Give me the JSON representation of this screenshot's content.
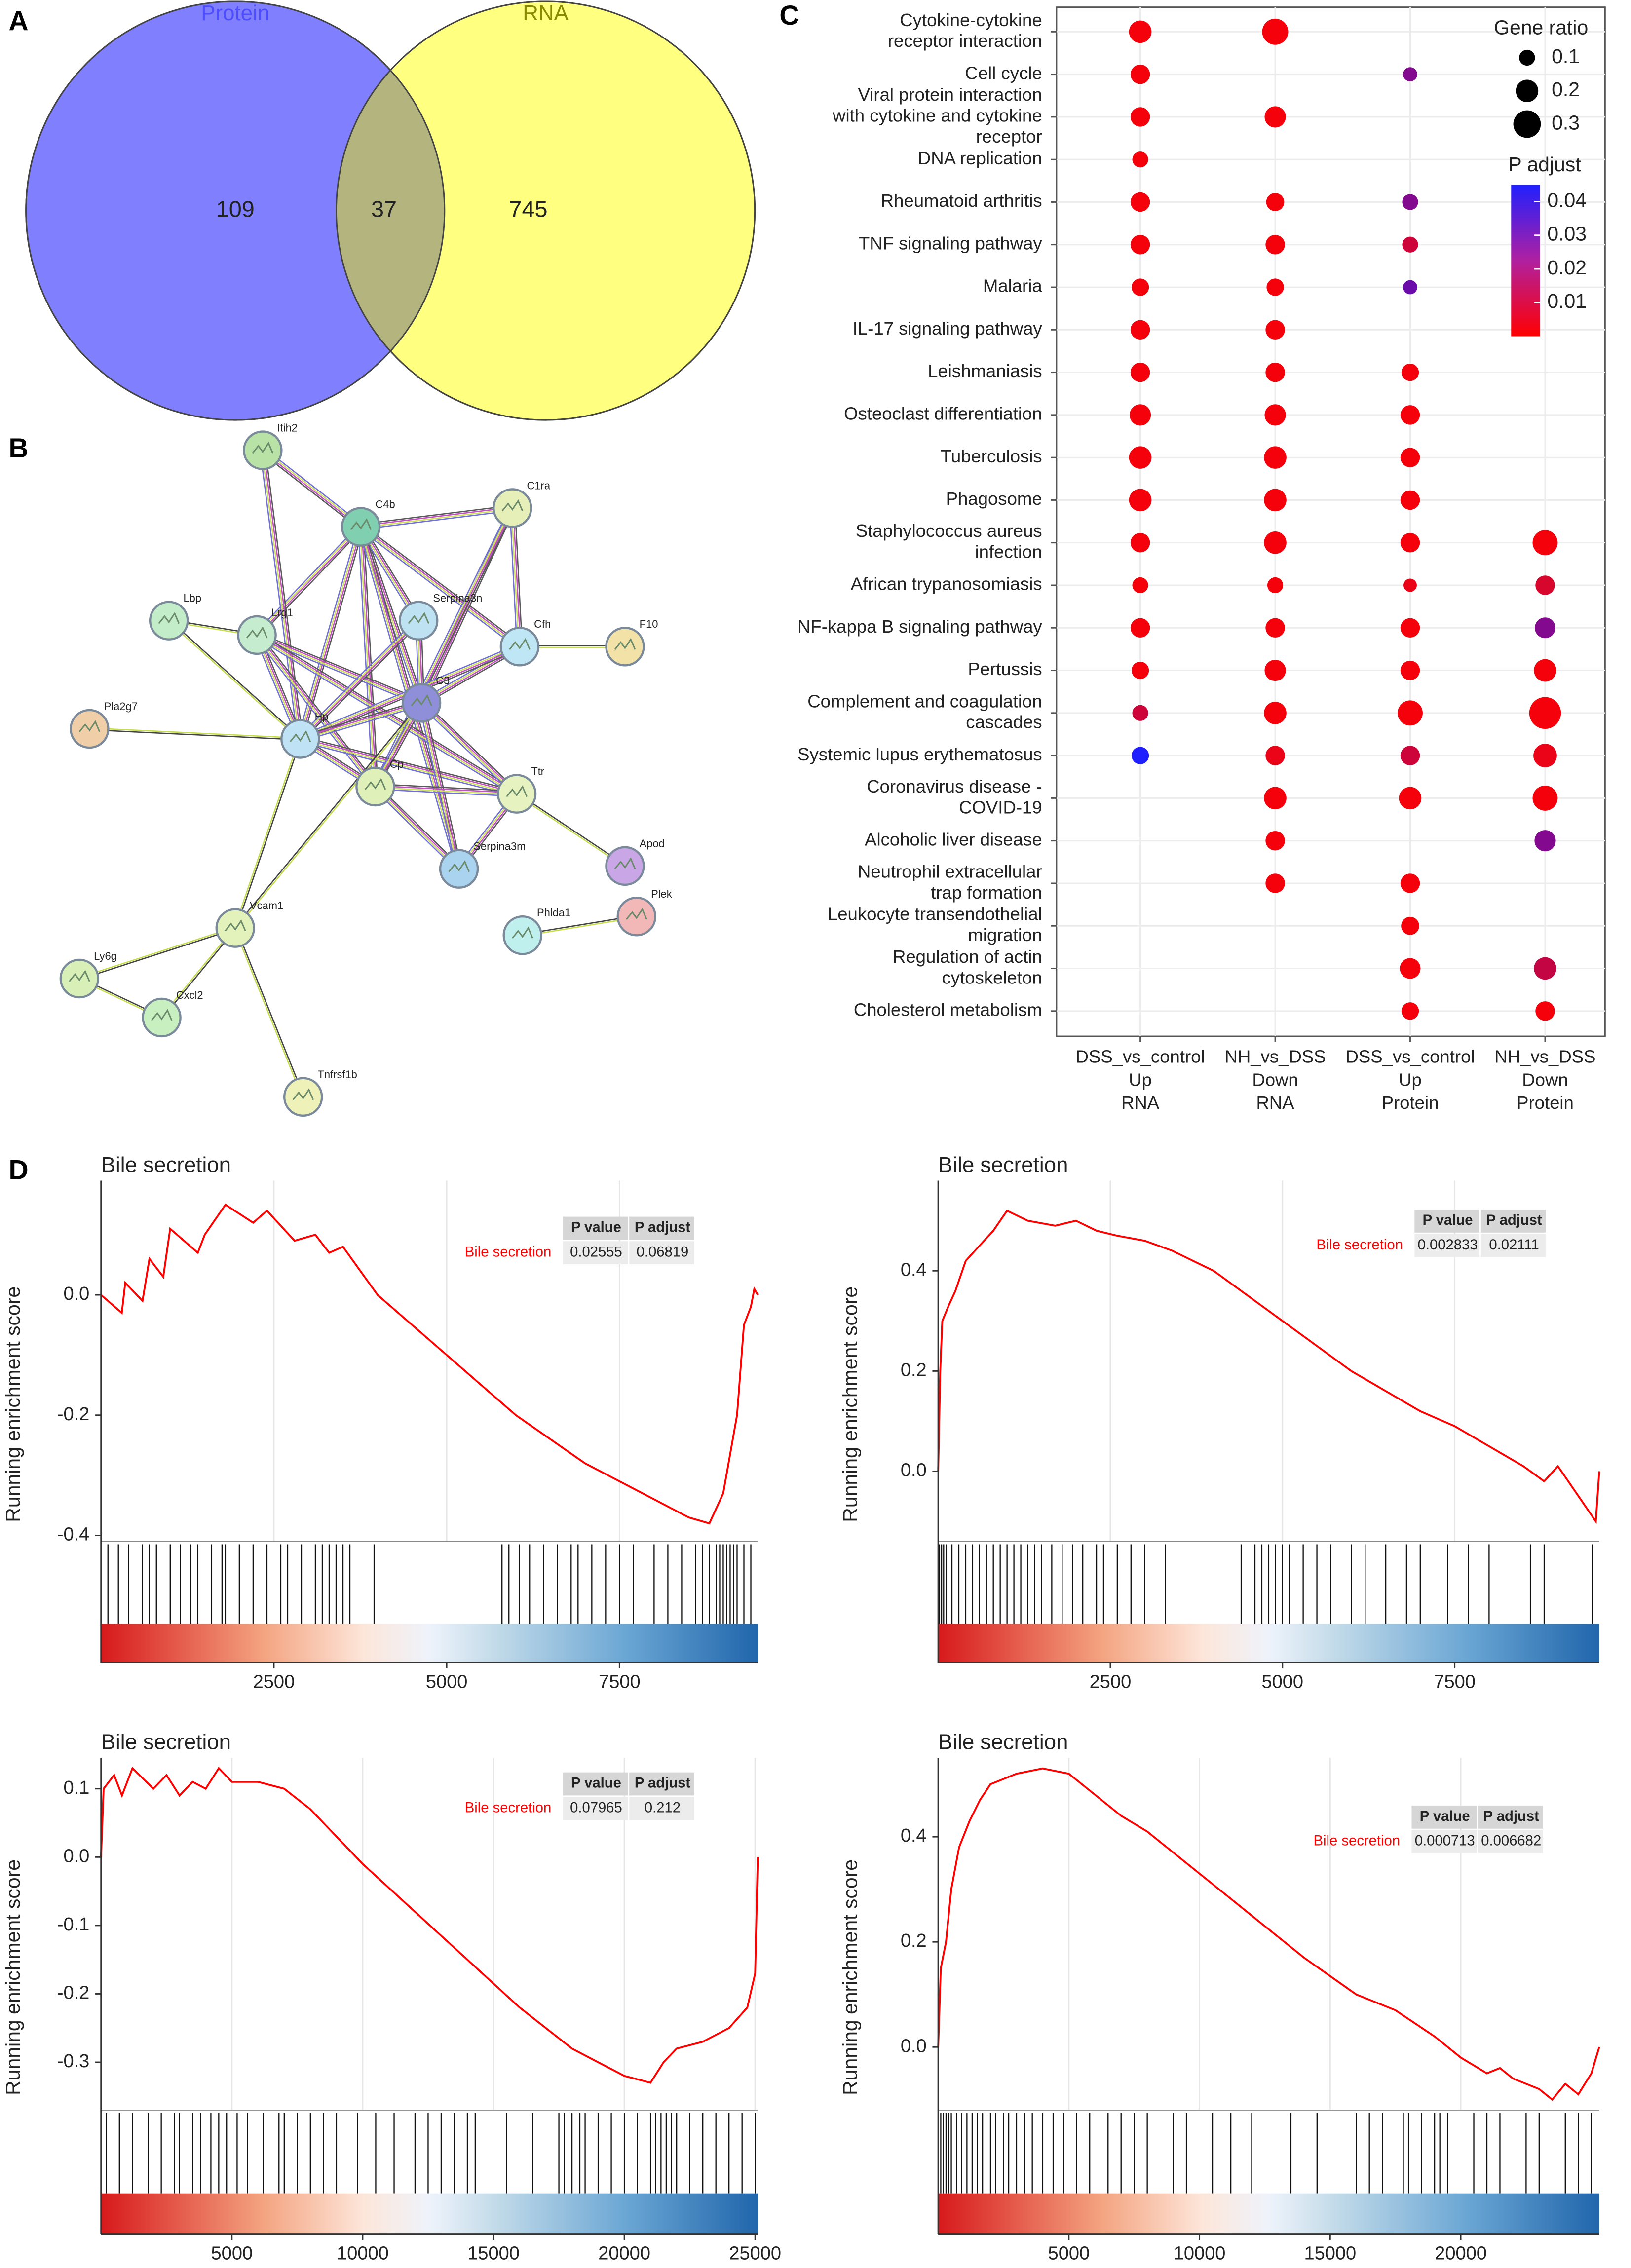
{
  "panels": [
    "A",
    "B",
    "C",
    "D"
  ],
  "chart_data": [
    {
      "type": "venn",
      "sets": [
        "Protein",
        "RNA"
      ],
      "values": [
        109,
        37,
        745
      ],
      "colors": [
        "#8080ff",
        "#ffff80"
      ],
      "overlap_color": "#b4b47e",
      "label_colors": [
        "#4d4dff",
        "#8a8a00"
      ]
    },
    {
      "type": "network",
      "nodes": [
        {
          "label": "Itih2",
          "color": "#b9e3a6"
        },
        {
          "label": "C4b",
          "color": "#7fcfb0"
        },
        {
          "label": "C1ra",
          "color": "#e6efb8"
        },
        {
          "label": "Lbp",
          "color": "#c3ecc9"
        },
        {
          "label": "Lrg1",
          "color": "#c6eccf"
        },
        {
          "label": "Serpina3n",
          "color": "#bfe2f3"
        },
        {
          "label": "Cfh",
          "color": "#bfe6f5"
        },
        {
          "label": "F10",
          "color": "#f2e2a8"
        },
        {
          "label": "Pla2g7",
          "color": "#f0cfa8"
        },
        {
          "label": "Hp",
          "color": "#bfe2f5"
        },
        {
          "label": "C3",
          "color": "#8f8fd9"
        },
        {
          "label": "Cp",
          "color": "#dff0b8"
        },
        {
          "label": "Ttr",
          "color": "#e6f2c0"
        },
        {
          "label": "Apod",
          "color": "#c9a6e6"
        },
        {
          "label": "Serpina3m",
          "color": "#a9d3ef"
        },
        {
          "label": "Vcam1",
          "color": "#e3f2ba"
        },
        {
          "label": "Phlda1",
          "color": "#bff0ee"
        },
        {
          "label": "Plek",
          "color": "#f2b8b8"
        },
        {
          "label": "Ly6g",
          "color": "#d8f0b8"
        },
        {
          "label": "Cxcl2",
          "color": "#c8efc0"
        },
        {
          "label": "Tnfrsf1b",
          "color": "#eef2b8"
        }
      ]
    },
    {
      "type": "dot",
      "categories": [
        [
          "Cytokine-cytokine",
          "receptor  interaction"
        ],
        [
          "Cell cycle"
        ],
        [
          "Viral protein interaction",
          "with cytokine and cytokine",
          "receptor"
        ],
        [
          "DNA replication"
        ],
        [
          "Rheumatoid arthritis"
        ],
        [
          "TNF signaling pathway"
        ],
        [
          "Malaria"
        ],
        [
          "IL-17 signaling pathway"
        ],
        [
          "Leishmaniasis"
        ],
        [
          "Osteoclast differentiation"
        ],
        [
          "Tuberculosis"
        ],
        [
          "Phagosome"
        ],
        [
          "Staphylococcus aureus",
          "infection"
        ],
        [
          "African trypanosomiasis"
        ],
        [
          "NF-kappa B signaling pathway"
        ],
        [
          "Pertussis"
        ],
        [
          "Complement and coagulation",
          "cascades"
        ],
        [
          "Systemic lupus erythematosus"
        ],
        [
          "Coronavirus disease -",
          "COVID-19"
        ],
        [
          "Alcoholic liver disease"
        ],
        [
          "Neutrophil extracellular",
          "trap formation"
        ],
        [
          "Leukocyte transendothelial",
          "migration"
        ],
        [
          "Regulation of actin",
          "cytoskeleton"
        ],
        [
          "Cholesterol metabolism"
        ]
      ],
      "x_categories": [
        [
          "DSS_vs_control",
          "Up",
          "RNA"
        ],
        [
          "NH_vs_DSS",
          "Down",
          "RNA"
        ],
        [
          "DSS_vs_control",
          "Up",
          "Protein"
        ],
        [
          "NH_vs_DSS",
          "Down",
          "Protein"
        ]
      ],
      "series": [
        {
          "values": [
            0.2,
            0.15,
            0.15,
            0.1,
            0.15,
            0.15,
            0.12,
            0.15,
            0.15,
            0.18,
            0.2,
            0.2,
            0.15,
            0.1,
            0.15,
            0.12,
            0.1,
            0.12,
            null,
            null,
            null,
            null,
            null,
            null
          ],
          "p_adjust": [
            0.002,
            0.002,
            0.002,
            0.002,
            0.002,
            0.002,
            0.002,
            0.002,
            0.002,
            0.002,
            0.002,
            0.002,
            0.002,
            0.002,
            0.002,
            0.002,
            0.01,
            0.045,
            null,
            null,
            null,
            null,
            null,
            null
          ]
        },
        {
          "values": [
            0.27,
            null,
            0.18,
            null,
            0.13,
            0.15,
            0.12,
            0.15,
            0.15,
            0.18,
            0.2,
            0.2,
            0.2,
            0.1,
            0.15,
            0.18,
            0.2,
            0.15,
            0.2,
            0.15,
            0.15,
            null,
            null,
            null
          ],
          "p_adjust": [
            0.002,
            null,
            0.002,
            null,
            0.002,
            0.002,
            0.002,
            0.002,
            0.002,
            0.002,
            0.002,
            0.002,
            0.002,
            0.002,
            0.002,
            0.002,
            0.002,
            0.004,
            0.002,
            0.002,
            0.002,
            null,
            null,
            null
          ]
        },
        {
          "values": [
            null,
            0.08,
            null,
            null,
            0.1,
            0.1,
            0.08,
            null,
            0.12,
            0.15,
            0.15,
            0.15,
            0.15,
            0.07,
            0.15,
            0.15,
            0.25,
            0.15,
            0.2,
            null,
            0.15,
            0.13,
            0.17,
            0.12
          ],
          "p_adjust": [
            null,
            0.025,
            null,
            null,
            0.025,
            0.01,
            0.03,
            null,
            0.002,
            0.002,
            0.002,
            0.002,
            0.002,
            0.004,
            0.002,
            0.002,
            0.002,
            0.01,
            0.002,
            null,
            0.002,
            0.002,
            0.002,
            0.002
          ]
        },
        {
          "values": [
            null,
            null,
            null,
            null,
            null,
            null,
            null,
            null,
            null,
            null,
            null,
            null,
            0.25,
            0.15,
            0.17,
            0.2,
            0.4,
            0.22,
            0.25,
            0.18,
            null,
            null,
            0.2,
            0.15
          ],
          "p_adjust": [
            null,
            null,
            null,
            null,
            null,
            null,
            null,
            null,
            null,
            null,
            null,
            null,
            0.002,
            0.008,
            0.025,
            0.002,
            0.002,
            0.004,
            0.002,
            0.025,
            null,
            null,
            0.012,
            0.002
          ]
        }
      ],
      "size_title": "Gene ratio",
      "size_ticks": [
        0.1,
        0.2,
        0.3
      ],
      "color_title": "P adjust",
      "colorlim": [
        0,
        0.045
      ],
      "color_ticks": [
        0.01,
        0.02,
        0.03,
        0.04
      ],
      "colors": [
        "#ff0000",
        "#2020ff"
      ]
    },
    {
      "type": "gsea",
      "title": "Bile secretion",
      "ylabel": "Running enrichment score",
      "color": "#ff0000",
      "grid": true,
      "x": [
        0,
        300,
        350,
        600,
        700,
        900,
        1000,
        1400,
        1500,
        1800,
        2200,
        2400,
        2800,
        3100,
        3300,
        3500,
        4000,
        5000,
        6000,
        7000,
        8000,
        8500,
        8800,
        9000,
        9200,
        9300,
        9400,
        9450,
        9500
      ],
      "values": [
        0.0,
        -0.03,
        0.02,
        -0.01,
        0.06,
        0.03,
        0.11,
        0.07,
        0.1,
        0.15,
        0.12,
        0.14,
        0.09,
        0.1,
        0.07,
        0.08,
        0.0,
        -0.1,
        -0.2,
        -0.28,
        -0.34,
        -0.37,
        -0.38,
        -0.33,
        -0.2,
        -0.05,
        -0.02,
        0.01,
        0.0
      ],
      "hits": [
        100,
        250,
        400,
        600,
        700,
        800,
        1000,
        1150,
        1300,
        1400,
        1600,
        1750,
        1800,
        2000,
        2200,
        2400,
        2600,
        2700,
        2900,
        3100,
        3200,
        3300,
        3400,
        3500,
        3600,
        3950,
        5800,
        5900,
        6050,
        6200,
        6400,
        6600,
        6800,
        6900,
        7100,
        7300,
        7500,
        7700,
        8000,
        8200,
        8400,
        8600,
        8700,
        8800,
        8900,
        8950,
        9000,
        9050,
        9100,
        9150,
        9200,
        9300,
        9400
      ],
      "xlim": [
        0,
        9500
      ],
      "ylim": [
        -0.41,
        0.19
      ],
      "xticks": [
        2500,
        5000,
        7500
      ],
      "yticks": [
        -0.4,
        -0.2,
        {
          "value": 0,
          "label": "0.0"
        }
      ],
      "table": {
        "header": [
          "P value",
          "P adjust"
        ],
        "row_label": "Bile secretion",
        "values": [
          0.02555,
          0.06819
        ]
      }
    },
    {
      "type": "gsea",
      "title": "Bile secretion",
      "ylabel": "Running enrichment score",
      "color": "#ff0000",
      "grid": true,
      "x": [
        0,
        30,
        60,
        150,
        250,
        400,
        600,
        800,
        1000,
        1300,
        1700,
        2000,
        2300,
        2600,
        3000,
        3400,
        4000,
        5000,
        6000,
        7000,
        7500,
        8000,
        8500,
        8800,
        9000,
        9500,
        9550,
        9600
      ],
      "values": [
        0.0,
        0.2,
        0.3,
        0.33,
        0.36,
        0.42,
        0.45,
        0.48,
        0.52,
        0.5,
        0.49,
        0.5,
        0.48,
        0.47,
        0.46,
        0.44,
        0.4,
        0.3,
        0.2,
        0.12,
        0.09,
        0.05,
        0.01,
        -0.02,
        0.01,
        -0.09,
        -0.1,
        0.0
      ],
      "hits": [
        20,
        50,
        80,
        120,
        200,
        300,
        400,
        500,
        600,
        700,
        800,
        900,
        1000,
        1100,
        1200,
        1300,
        1400,
        1500,
        1650,
        1800,
        1950,
        2100,
        2300,
        2400,
        2600,
        2800,
        3000,
        3300,
        4400,
        4600,
        4700,
        4800,
        4900,
        5000,
        5100,
        5300,
        5500,
        5700,
        6000,
        6200,
        6500,
        6800,
        7000,
        7400,
        7700,
        8000,
        8600,
        8800,
        9500
      ],
      "xlim": [
        0,
        9600
      ],
      "ylim": [
        -0.14,
        0.58
      ],
      "xticks": [
        2500,
        5000,
        7500
      ],
      "yticks": [
        {
          "value": 0,
          "label": "0.0"
        },
        0.2,
        0.4
      ],
      "table": {
        "header": [
          "P value",
          "P adjust"
        ],
        "row_label": "Bile secretion",
        "values": [
          0.002833,
          0.02111
        ]
      }
    },
    {
      "type": "gsea",
      "title": "Bile secretion",
      "ylabel": "Running enrichment score",
      "color": "#ff0000",
      "grid": true,
      "x": [
        0,
        100,
        500,
        800,
        1200,
        2000,
        2500,
        3000,
        3500,
        4000,
        4500,
        5000,
        6000,
        7000,
        8000,
        9000,
        10000,
        12000,
        14000,
        16000,
        18000,
        19000,
        20000,
        21000,
        21500,
        22000,
        23000,
        24000,
        24700,
        25000,
        25100
      ],
      "values": [
        0.0,
        0.1,
        0.12,
        0.09,
        0.13,
        0.1,
        0.12,
        0.09,
        0.11,
        0.1,
        0.13,
        0.11,
        0.11,
        0.1,
        0.07,
        0.03,
        -0.01,
        -0.08,
        -0.15,
        -0.22,
        -0.28,
        -0.3,
        -0.32,
        -0.33,
        -0.3,
        -0.28,
        -0.27,
        -0.25,
        -0.22,
        -0.17,
        0.0
      ],
      "hits": [
        200,
        700,
        1200,
        1800,
        2300,
        2800,
        3000,
        3500,
        3800,
        4200,
        4500,
        4800,
        5200,
        5600,
        6200,
        6800,
        7000,
        7500,
        8000,
        8500,
        9000,
        9800,
        10500,
        11200,
        12000,
        12500,
        13000,
        13500,
        14000,
        14300,
        15500,
        16500,
        17500,
        17700,
        18000,
        18300,
        18500,
        19000,
        19500,
        20000,
        20500,
        21000,
        21200,
        21400,
        21600,
        21800,
        22000,
        22500,
        23000,
        23500,
        24000,
        24500,
        25000
      ],
      "xlim": [
        0,
        25100
      ],
      "ylim": [
        -0.37,
        0.145
      ],
      "xticks": [
        5000,
        10000,
        15000,
        20000,
        25000
      ],
      "yticks": [
        -0.3,
        -0.2,
        -0.1,
        {
          "value": 0,
          "label": "0.0"
        },
        0.1
      ],
      "table": {
        "header": [
          "P value",
          "P adjust"
        ],
        "row_label": "Bile secretion",
        "values": [
          0.07965,
          0.212
        ]
      }
    },
    {
      "type": "gsea",
      "title": "Bile secretion",
      "ylabel": "Running enrichment score",
      "color": "#ff0000",
      "grid": true,
      "x": [
        0,
        100,
        300,
        500,
        800,
        1200,
        1600,
        2000,
        2500,
        3000,
        4000,
        5000,
        6000,
        7000,
        8000,
        10000,
        12000,
        14000,
        16000,
        17500,
        19000,
        20000,
        21000,
        21500,
        22000,
        23000,
        23500,
        24000,
        24500,
        25000,
        25300
      ],
      "values": [
        0.0,
        0.15,
        0.2,
        0.3,
        0.38,
        0.43,
        0.47,
        0.5,
        0.51,
        0.52,
        0.53,
        0.52,
        0.48,
        0.44,
        0.41,
        0.33,
        0.25,
        0.17,
        0.1,
        0.07,
        0.02,
        -0.02,
        -0.05,
        -0.04,
        -0.06,
        -0.08,
        -0.1,
        -0.07,
        -0.09,
        -0.05,
        0.0
      ],
      "hits": [
        100,
        200,
        300,
        400,
        500,
        700,
        900,
        1100,
        1300,
        1500,
        1700,
        2000,
        2200,
        2500,
        2700,
        3000,
        3300,
        3600,
        4000,
        4400,
        4800,
        5300,
        5800,
        6500,
        7000,
        7500,
        8000,
        9000,
        9500,
        10500,
        11200,
        12000,
        13500,
        14500,
        16000,
        16500,
        17000,
        17800,
        18000,
        18500,
        19000,
        19200,
        19500,
        20500,
        21000,
        21500,
        22500,
        23000,
        24000,
        24500,
        25000
      ],
      "xlim": [
        0,
        25300
      ],
      "ylim": [
        -0.12,
        0.55
      ],
      "xticks": [
        5000,
        10000,
        15000,
        20000
      ],
      "yticks": [
        {
          "value": 0,
          "label": "0.0"
        },
        0.2,
        0.4
      ],
      "table": {
        "header": [
          "P value",
          "P adjust"
        ],
        "row_label": "Bile secretion",
        "values": [
          0.000713,
          0.006682
        ]
      }
    }
  ]
}
